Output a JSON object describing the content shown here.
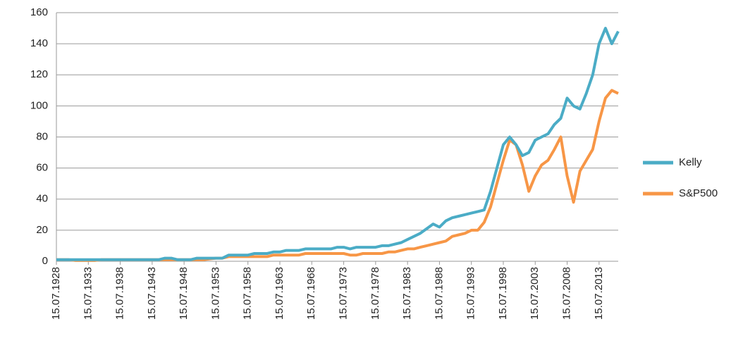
{
  "chart_data": {
    "type": "line",
    "x": [
      "15.07.1928",
      "15.07.1929",
      "15.07.1930",
      "15.07.1931",
      "15.07.1932",
      "15.07.1933",
      "15.07.1934",
      "15.07.1935",
      "15.07.1936",
      "15.07.1937",
      "15.07.1938",
      "15.07.1939",
      "15.07.1940",
      "15.07.1941",
      "15.07.1942",
      "15.07.1943",
      "15.07.1944",
      "15.07.1945",
      "15.07.1946",
      "15.07.1947",
      "15.07.1948",
      "15.07.1949",
      "15.07.1950",
      "15.07.1951",
      "15.07.1952",
      "15.07.1953",
      "15.07.1954",
      "15.07.1955",
      "15.07.1956",
      "15.07.1957",
      "15.07.1958",
      "15.07.1959",
      "15.07.1960",
      "15.07.1961",
      "15.07.1962",
      "15.07.1963",
      "15.07.1964",
      "15.07.1965",
      "15.07.1966",
      "15.07.1967",
      "15.07.1968",
      "15.07.1969",
      "15.07.1970",
      "15.07.1971",
      "15.07.1972",
      "15.07.1973",
      "15.07.1974",
      "15.07.1975",
      "15.07.1976",
      "15.07.1977",
      "15.07.1978",
      "15.07.1979",
      "15.07.1980",
      "15.07.1981",
      "15.07.1982",
      "15.07.1983",
      "15.07.1984",
      "15.07.1985",
      "15.07.1986",
      "15.07.1987",
      "15.07.1988",
      "15.07.1989",
      "15.07.1990",
      "15.07.1991",
      "15.07.1992",
      "15.07.1993",
      "15.07.1994",
      "15.07.1995",
      "15.07.1996",
      "15.07.1997",
      "15.07.1998",
      "15.07.1999",
      "15.07.2000",
      "15.07.2001",
      "15.07.2002",
      "15.07.2003",
      "15.07.2004",
      "15.07.2005",
      "15.07.2006",
      "15.07.2007",
      "15.07.2008",
      "15.07.2009",
      "15.07.2010",
      "15.07.2011",
      "15.07.2012",
      "15.07.2013",
      "15.07.2014",
      "15.07.2015",
      "15.07.2016"
    ],
    "series": [
      {
        "name": "Kelly",
        "color": "#4bacc6",
        "values": [
          1,
          1,
          1,
          1,
          1,
          1,
          1,
          1,
          1,
          1,
          1,
          1,
          1,
          1,
          1,
          1,
          1,
          2,
          2,
          1,
          1,
          1,
          2,
          2,
          2,
          2,
          2,
          4,
          4,
          4,
          4,
          5,
          5,
          5,
          6,
          6,
          7,
          7,
          7,
          8,
          8,
          8,
          8,
          8,
          9,
          9,
          8,
          9,
          9,
          9,
          9,
          10,
          10,
          11,
          12,
          14,
          16,
          18,
          21,
          24,
          22,
          26,
          28,
          29,
          30,
          31,
          32,
          33,
          45,
          60,
          75,
          80,
          75,
          68,
          70,
          78,
          80,
          82,
          88,
          92,
          105,
          100,
          98,
          108,
          120,
          140,
          150,
          140,
          148
        ]
      },
      {
        "name": "S&P500",
        "color": "#f79646",
        "values": [
          1,
          1,
          1,
          0.5,
          0.5,
          0.5,
          0.5,
          1,
          1,
          1,
          1,
          1,
          1,
          1,
          1,
          1,
          1,
          1,
          1,
          1,
          1,
          1,
          1,
          1,
          1.5,
          2,
          2,
          3,
          3,
          3,
          3,
          3,
          3,
          3,
          4,
          4,
          4,
          4,
          4,
          5,
          5,
          5,
          5,
          5,
          5,
          5,
          4,
          4,
          5,
          5,
          5,
          5,
          6,
          6,
          7,
          8,
          8,
          9,
          10,
          11,
          12,
          13,
          16,
          17,
          18,
          20,
          20,
          25,
          35,
          50,
          65,
          78,
          75,
          62,
          45,
          55,
          62,
          65,
          72,
          80,
          55,
          38,
          58,
          65,
          72,
          90,
          105,
          110,
          108
        ]
      }
    ],
    "xlim": [
      "15.07.1928",
      "15.07.2016"
    ],
    "xticks": [
      "15.07.1928",
      "15.07.1933",
      "15.07.1938",
      "15.07.1943",
      "15.07.1948",
      "15.07.1953",
      "15.07.1958",
      "15.07.1963",
      "15.07.1968",
      "15.07.1973",
      "15.07.1978",
      "15.07.1983",
      "15.07.1988",
      "15.07.1993",
      "15.07.1998",
      "15.07.2003",
      "15.07.2008",
      "15.07.2013"
    ],
    "ylim": [
      0,
      160
    ],
    "yticks": [
      0,
      20,
      40,
      60,
      80,
      100,
      120,
      140,
      160
    ],
    "grid": true,
    "legend": "right"
  }
}
